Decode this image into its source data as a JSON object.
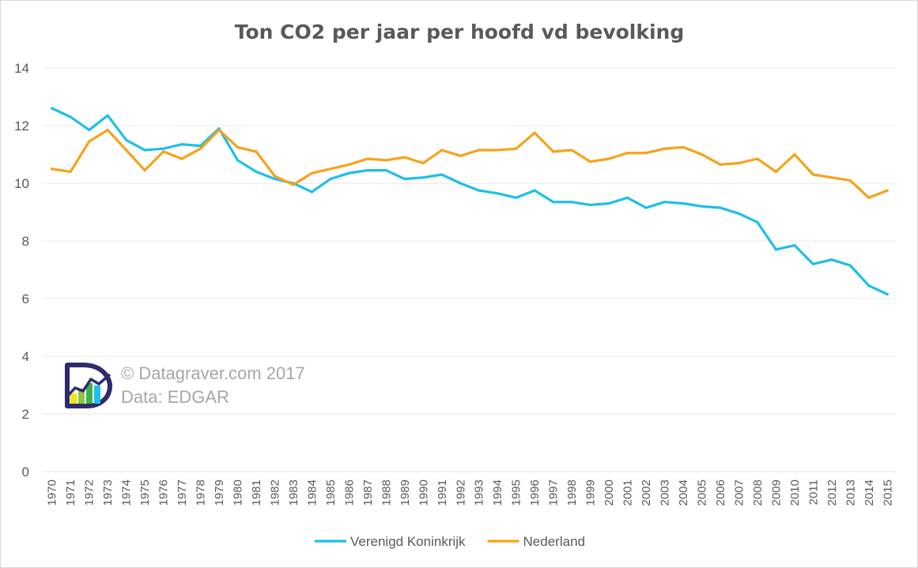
{
  "chart_data": {
    "type": "line",
    "title": "Ton CO2 per jaar per hoofd vd bevolking",
    "xlabel": "",
    "ylabel": "",
    "ylim": [
      0,
      14
    ],
    "yticks": [
      0,
      2,
      4,
      6,
      8,
      10,
      12,
      14
    ],
    "grid": true,
    "legend": "bottom",
    "categories": [
      "1970",
      "1971",
      "1972",
      "1973",
      "1974",
      "1975",
      "1976",
      "1977",
      "1978",
      "1979",
      "1980",
      "1981",
      "1982",
      "1983",
      "1984",
      "1985",
      "1986",
      "1987",
      "1988",
      "1989",
      "1990",
      "1991",
      "1992",
      "1993",
      "1994",
      "1995",
      "1996",
      "1997",
      "1998",
      "1999",
      "2000",
      "2001",
      "2002",
      "2003",
      "2004",
      "2005",
      "2006",
      "2007",
      "2008",
      "2009",
      "2010",
      "2011",
      "2012",
      "2013",
      "2014",
      "2015"
    ],
    "series": [
      {
        "name": "Verenigd Koninkrijk",
        "color": "#1ebfe8",
        "values": [
          12.6,
          12.3,
          11.85,
          12.35,
          11.5,
          11.15,
          11.2,
          11.35,
          11.3,
          11.9,
          10.8,
          10.4,
          10.15,
          10.0,
          9.7,
          10.15,
          10.35,
          10.45,
          10.45,
          10.15,
          10.2,
          10.3,
          10.0,
          9.75,
          9.65,
          9.5,
          9.75,
          9.35,
          9.35,
          9.25,
          9.3,
          9.5,
          9.15,
          9.35,
          9.3,
          9.2,
          9.15,
          8.95,
          8.65,
          7.7,
          7.85,
          7.2,
          7.35,
          7.15,
          6.45,
          6.15
        ]
      },
      {
        "name": "Nederland",
        "color": "#f5a31a",
        "values": [
          10.5,
          10.4,
          11.45,
          11.85,
          11.15,
          10.45,
          11.1,
          10.85,
          11.2,
          11.85,
          11.25,
          11.1,
          10.25,
          9.95,
          10.35,
          10.5,
          10.65,
          10.85,
          10.8,
          10.9,
          10.7,
          11.15,
          10.95,
          11.15,
          11.15,
          11.2,
          11.75,
          11.1,
          11.15,
          10.75,
          10.85,
          11.05,
          11.05,
          11.2,
          11.25,
          11.0,
          10.65,
          10.7,
          10.85,
          10.4,
          11.0,
          10.3,
          10.2,
          10.1,
          9.5,
          9.75
        ]
      }
    ],
    "annotations": {
      "copyright": "© Datagraver.com 2017",
      "source": "Data: EDGAR"
    },
    "logo_colors": {
      "outline": "#2e2a6b",
      "bars": [
        "#f2e50d",
        "#8cc63f",
        "#39b54a",
        "#1ebfe8"
      ]
    }
  }
}
